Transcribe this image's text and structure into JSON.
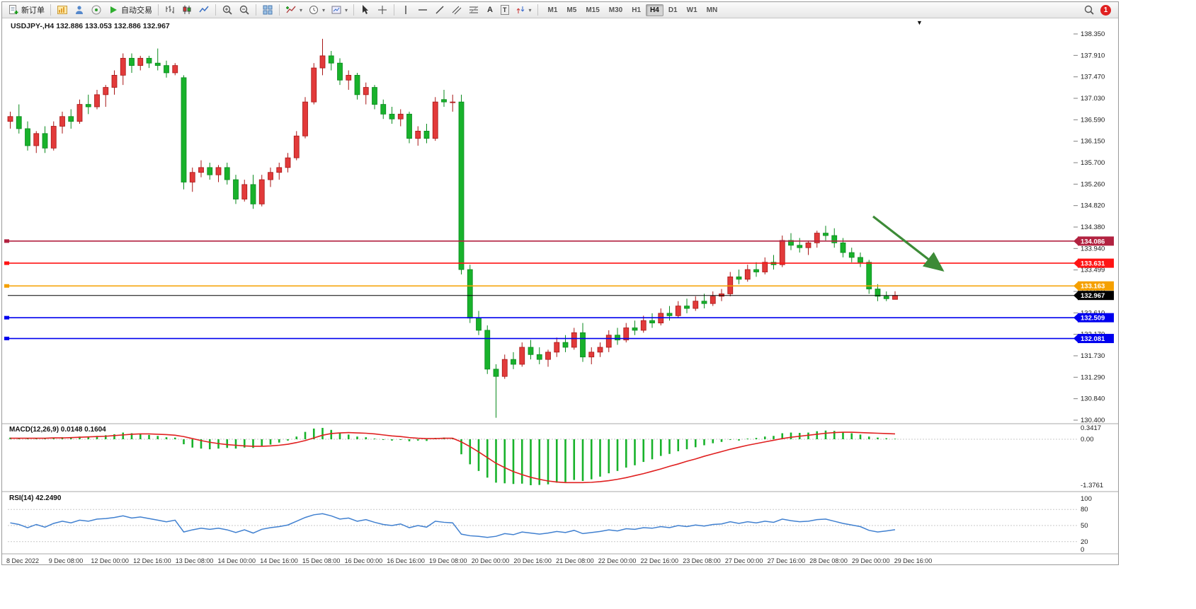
{
  "toolbar": {
    "new_order_label": "新订单",
    "autotrading_label": "自动交易",
    "text_tool_label": "A",
    "textbox_tool_label": "T",
    "timeframes": [
      "M1",
      "M5",
      "M15",
      "M30",
      "H1",
      "H4",
      "D1",
      "W1",
      "MN"
    ],
    "active_timeframe": "H4",
    "notification_count": "1"
  },
  "chart": {
    "title": "USDJPY-,H4 132.886 133.053 132.886 132.967",
    "price_axis_labels": [
      "138.350",
      "137.910",
      "137.470",
      "137.030",
      "136.590",
      "136.150",
      "135.700",
      "135.260",
      "134.820",
      "134.380",
      "133.940",
      "133.499",
      "133.050",
      "132.610",
      "132.170",
      "131.730",
      "131.290",
      "130.840",
      "130.400"
    ],
    "time_axis_labels": [
      "8 Dec 2022",
      "9 Dec 08:00",
      "12 Dec 00:00",
      "12 Dec 16:00",
      "13 Dec 08:00",
      "14 Dec 00:00",
      "14 Dec 16:00",
      "15 Dec 08:00",
      "16 Dec 00:00",
      "16 Dec 16:00",
      "19 Dec 08:00",
      "20 Dec 00:00",
      "20 Dec 16:00",
      "21 Dec 08:00",
      "22 Dec 00:00",
      "22 Dec 16:00",
      "23 Dec 08:00",
      "27 Dec 00:00",
      "27 Dec 16:00",
      "28 Dec 08:00",
      "29 Dec 00:00",
      "29 Dec 16:00"
    ],
    "hlines": [
      {
        "price": "134.086",
        "value": 134.086,
        "color": "#b22240",
        "current": false
      },
      {
        "price": "133.631",
        "value": 133.631,
        "color": "#ff1414",
        "current": false
      },
      {
        "price": "133.163",
        "value": 133.163,
        "color": "#f5a000",
        "current": false
      },
      {
        "price": "132.967",
        "value": 132.967,
        "color": "#000000",
        "current": true
      },
      {
        "price": "132.509",
        "value": 132.509,
        "color": "#0000ee",
        "current": false
      },
      {
        "price": "132.081",
        "value": 132.081,
        "color": "#0000ee",
        "current": false
      }
    ]
  },
  "macd": {
    "label": "MACD(12,26,9) 0.0148 0.1604",
    "scale_labels": [
      "0.3417",
      "0.00",
      "-1.3761"
    ],
    "scale_values": [
      0.3417,
      0,
      -1.3761
    ]
  },
  "rsi": {
    "label": "RSI(14) 42.2490",
    "scale_labels": [
      "100",
      "80",
      "50",
      "20",
      "0"
    ],
    "scale_values": [
      100,
      80,
      50,
      20,
      0
    ],
    "levels": [
      80,
      50,
      20
    ]
  },
  "annotation": {
    "type": "down-trend-arrow",
    "color": "#3d8b37"
  },
  "chart_data": {
    "type": "candlestick",
    "symbol": "USDJPY-",
    "timeframe": "H4",
    "ylim": [
      130.4,
      138.35
    ],
    "up_color": "#e23a3a",
    "up_stroke": "#a81616",
    "down_color": "#18b22b",
    "down_stroke": "#0a8a1e",
    "macd_color": "#18b22b",
    "signal_color": "#e02020",
    "rsi_color": "#4080d0",
    "macd_range": [
      -1.3761,
      0.3417
    ],
    "ohlc": [
      [
        136.55,
        136.75,
        136.4,
        136.65
      ],
      [
        136.65,
        136.9,
        136.3,
        136.4
      ],
      [
        136.4,
        136.55,
        135.95,
        136.05
      ],
      [
        136.05,
        136.35,
        135.9,
        136.3
      ],
      [
        136.3,
        136.45,
        135.9,
        136.0
      ],
      [
        136.0,
        136.55,
        135.95,
        136.45
      ],
      [
        136.45,
        136.75,
        136.3,
        136.65
      ],
      [
        136.65,
        136.8,
        136.4,
        136.55
      ],
      [
        136.55,
        137.0,
        136.5,
        136.9
      ],
      [
        136.9,
        137.1,
        136.7,
        136.85
      ],
      [
        136.85,
        137.2,
        136.8,
        137.1
      ],
      [
        137.1,
        137.3,
        136.85,
        137.25
      ],
      [
        137.25,
        137.6,
        137.1,
        137.5
      ],
      [
        137.5,
        137.95,
        137.3,
        137.85
      ],
      [
        137.85,
        137.95,
        137.55,
        137.7
      ],
      [
        137.7,
        137.9,
        137.6,
        137.85
      ],
      [
        137.85,
        137.9,
        137.65,
        137.75
      ],
      [
        137.75,
        138.05,
        137.6,
        137.7
      ],
      [
        137.7,
        137.8,
        137.45,
        137.55
      ],
      [
        137.55,
        137.75,
        137.5,
        137.7
      ],
      [
        137.45,
        137.5,
        135.15,
        135.3
      ],
      [
        135.3,
        135.6,
        135.1,
        135.5
      ],
      [
        135.5,
        135.75,
        135.4,
        135.6
      ],
      [
        135.6,
        135.7,
        135.35,
        135.45
      ],
      [
        135.45,
        135.65,
        135.3,
        135.6
      ],
      [
        135.6,
        135.7,
        135.25,
        135.35
      ],
      [
        135.35,
        135.45,
        134.85,
        134.95
      ],
      [
        134.95,
        135.35,
        134.9,
        135.25
      ],
      [
        135.25,
        135.45,
        134.75,
        134.85
      ],
      [
        134.85,
        135.45,
        134.8,
        135.35
      ],
      [
        135.35,
        135.6,
        135.2,
        135.5
      ],
      [
        135.5,
        135.7,
        135.35,
        135.6
      ],
      [
        135.6,
        135.9,
        135.5,
        135.8
      ],
      [
        135.8,
        136.35,
        135.75,
        136.25
      ],
      [
        136.25,
        137.05,
        136.2,
        136.95
      ],
      [
        136.95,
        137.75,
        136.9,
        137.65
      ],
      [
        137.65,
        138.25,
        137.5,
        137.9
      ],
      [
        137.9,
        138.0,
        137.6,
        137.75
      ],
      [
        137.75,
        137.85,
        137.3,
        137.4
      ],
      [
        137.4,
        137.6,
        137.2,
        137.5
      ],
      [
        137.5,
        137.55,
        137.0,
        137.1
      ],
      [
        137.1,
        137.35,
        136.9,
        137.25
      ],
      [
        137.25,
        137.3,
        136.8,
        136.9
      ],
      [
        136.9,
        137.0,
        136.6,
        136.7
      ],
      [
        136.7,
        136.85,
        136.5,
        136.6
      ],
      [
        136.6,
        136.8,
        136.45,
        136.7
      ],
      [
        136.7,
        136.75,
        136.1,
        136.2
      ],
      [
        136.2,
        136.45,
        136.05,
        136.35
      ],
      [
        136.35,
        136.5,
        136.1,
        136.2
      ],
      [
        136.2,
        137.05,
        136.15,
        136.95
      ],
      [
        137.0,
        137.2,
        136.85,
        136.95
      ],
      [
        136.95,
        137.1,
        136.75,
        136.95
      ],
      [
        136.95,
        137.1,
        133.4,
        133.5
      ],
      [
        133.5,
        133.6,
        132.4,
        132.5
      ],
      [
        132.5,
        132.65,
        132.15,
        132.25
      ],
      [
        132.25,
        132.35,
        131.35,
        131.45
      ],
      [
        131.45,
        131.55,
        130.45,
        131.3
      ],
      [
        131.3,
        131.75,
        131.25,
        131.65
      ],
      [
        131.65,
        131.8,
        131.45,
        131.55
      ],
      [
        131.55,
        132.0,
        131.5,
        131.9
      ],
      [
        131.9,
        132.05,
        131.65,
        131.75
      ],
      [
        131.75,
        131.9,
        131.55,
        131.65
      ],
      [
        131.65,
        131.85,
        131.5,
        131.8
      ],
      [
        131.8,
        132.1,
        131.7,
        132.0
      ],
      [
        132.0,
        132.15,
        131.8,
        131.9
      ],
      [
        131.9,
        132.3,
        131.85,
        132.2
      ],
      [
        132.2,
        132.4,
        131.6,
        131.7
      ],
      [
        131.7,
        131.9,
        131.55,
        131.8
      ],
      [
        131.8,
        132.0,
        131.7,
        131.9
      ],
      [
        131.9,
        132.25,
        131.8,
        132.15
      ],
      [
        132.15,
        132.3,
        131.95,
        132.05
      ],
      [
        132.05,
        132.4,
        132.0,
        132.3
      ],
      [
        132.3,
        132.45,
        132.15,
        132.25
      ],
      [
        132.25,
        132.55,
        132.2,
        132.45
      ],
      [
        132.45,
        132.6,
        132.3,
        132.4
      ],
      [
        132.4,
        132.7,
        132.35,
        132.6
      ],
      [
        132.6,
        132.75,
        132.45,
        132.55
      ],
      [
        132.55,
        132.85,
        132.5,
        132.75
      ],
      [
        132.75,
        132.9,
        132.6,
        132.7
      ],
      [
        132.7,
        132.95,
        132.65,
        132.85
      ],
      [
        132.85,
        133.0,
        132.7,
        132.8
      ],
      [
        132.8,
        133.05,
        132.75,
        132.95
      ],
      [
        132.95,
        133.1,
        132.85,
        133.0
      ],
      [
        133.0,
        133.45,
        132.95,
        133.35
      ],
      [
        133.35,
        133.5,
        133.2,
        133.3
      ],
      [
        133.3,
        133.6,
        133.25,
        133.5
      ],
      [
        133.5,
        133.65,
        133.35,
        133.45
      ],
      [
        133.45,
        133.75,
        133.4,
        133.65
      ],
      [
        133.65,
        133.8,
        133.5,
        133.6
      ],
      [
        133.6,
        134.2,
        133.55,
        134.1
      ],
      [
        134.1,
        134.25,
        133.9,
        134.0
      ],
      [
        134.0,
        134.15,
        133.85,
        133.95
      ],
      [
        133.95,
        134.1,
        133.8,
        134.05
      ],
      [
        134.05,
        134.3,
        133.95,
        134.25
      ],
      [
        134.25,
        134.4,
        134.1,
        134.2
      ],
      [
        134.2,
        134.35,
        133.95,
        134.05
      ],
      [
        134.05,
        134.15,
        133.75,
        133.85
      ],
      [
        133.85,
        133.95,
        133.65,
        133.75
      ],
      [
        133.75,
        133.85,
        133.55,
        133.65
      ],
      [
        133.65,
        133.7,
        133.0,
        133.1
      ],
      [
        133.1,
        133.2,
        132.85,
        132.95
      ],
      [
        132.95,
        133.05,
        132.85,
        132.9
      ],
      [
        132.886,
        133.053,
        132.886,
        132.967
      ]
    ],
    "macd_hist": [
      0.05,
      0.04,
      0.02,
      0.03,
      0.02,
      0.04,
      0.06,
      0.05,
      0.08,
      0.08,
      0.1,
      0.12,
      0.15,
      0.2,
      0.18,
      0.16,
      0.13,
      0.1,
      0.06,
      0.05,
      -0.15,
      -0.25,
      -0.28,
      -0.3,
      -0.28,
      -0.26,
      -0.28,
      -0.25,
      -0.26,
      -0.22,
      -0.16,
      -0.1,
      -0.04,
      0.08,
      0.22,
      0.32,
      0.34,
      0.28,
      0.18,
      0.14,
      0.08,
      0.06,
      0.02,
      -0.02,
      -0.04,
      -0.02,
      -0.06,
      -0.04,
      -0.05,
      0.04,
      0.05,
      0.04,
      -0.45,
      -0.75,
      -0.95,
      -1.15,
      -1.3,
      -1.32,
      -1.34,
      -1.33,
      -1.376,
      -1.37,
      -1.35,
      -1.3,
      -1.28,
      -1.22,
      -1.25,
      -1.2,
      -1.12,
      -1.02,
      -0.95,
      -0.85,
      -0.78,
      -0.68,
      -0.6,
      -0.5,
      -0.44,
      -0.36,
      -0.3,
      -0.24,
      -0.18,
      -0.12,
      -0.08,
      -0.02,
      -0.04,
      0.02,
      0.04,
      0.08,
      0.1,
      0.18,
      0.2,
      0.19,
      0.2,
      0.24,
      0.26,
      0.25,
      0.22,
      0.18,
      0.14,
      0.08,
      0.05,
      0.03,
      0.0148
    ],
    "macd_signal": [
      0.03,
      0.03,
      0.03,
      0.03,
      0.03,
      0.04,
      0.04,
      0.05,
      0.06,
      0.07,
      0.08,
      0.09,
      0.11,
      0.13,
      0.15,
      0.16,
      0.16,
      0.15,
      0.14,
      0.12,
      0.08,
      0.02,
      -0.04,
      -0.09,
      -0.13,
      -0.16,
      -0.18,
      -0.2,
      -0.21,
      -0.21,
      -0.2,
      -0.18,
      -0.15,
      -0.1,
      -0.04,
      0.04,
      0.12,
      0.17,
      0.19,
      0.2,
      0.19,
      0.18,
      0.16,
      0.13,
      0.1,
      0.08,
      0.05,
      0.03,
      0.02,
      0.02,
      0.03,
      0.03,
      -0.08,
      -0.22,
      -0.38,
      -0.55,
      -0.72,
      -0.85,
      -0.97,
      -1.06,
      -1.14,
      -1.2,
      -1.25,
      -1.28,
      -1.3,
      -1.3,
      -1.3,
      -1.29,
      -1.27,
      -1.24,
      -1.2,
      -1.15,
      -1.09,
      -1.03,
      -0.96,
      -0.89,
      -0.81,
      -0.74,
      -0.66,
      -0.59,
      -0.51,
      -0.44,
      -0.37,
      -0.3,
      -0.24,
      -0.18,
      -0.13,
      -0.08,
      -0.03,
      0.02,
      0.06,
      0.09,
      0.12,
      0.15,
      0.18,
      0.2,
      0.21,
      0.21,
      0.2,
      0.19,
      0.18,
      0.17,
      0.1604
    ],
    "rsi": [
      55,
      52,
      46,
      52,
      47,
      54,
      58,
      55,
      60,
      58,
      62,
      63,
      65,
      68,
      64,
      66,
      63,
      60,
      57,
      60,
      38,
      42,
      45,
      43,
      45,
      42,
      37,
      42,
      36,
      43,
      46,
      48,
      51,
      58,
      65,
      70,
      72,
      68,
      62,
      64,
      58,
      61,
      56,
      52,
      50,
      53,
      46,
      50,
      47,
      58,
      56,
      55,
      34,
      31,
      30,
      28,
      30,
      35,
      33,
      38,
      36,
      34,
      36,
      39,
      37,
      41,
      35,
      37,
      39,
      42,
      40,
      44,
      43,
      46,
      45,
      48,
      46,
      50,
      48,
      51,
      49,
      52,
      53,
      57,
      54,
      57,
      55,
      58,
      56,
      62,
      59,
      57,
      58,
      61,
      62,
      58,
      54,
      51,
      48,
      41,
      38,
      40,
      42.249
    ]
  }
}
